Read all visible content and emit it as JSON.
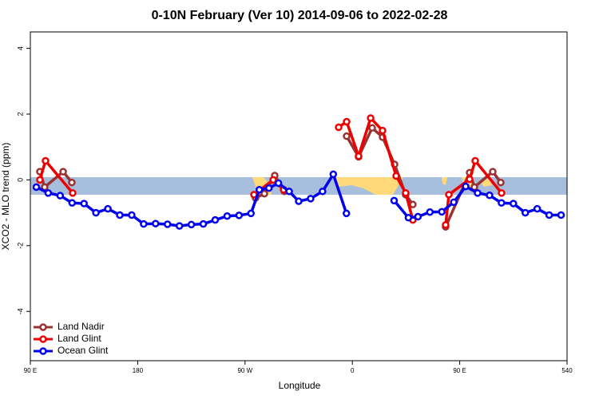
{
  "chart_data": {
    "type": "line",
    "title": "0-10N February (Ver 10)   2014-09-06 to 2022-02-28",
    "xlabel": "Longitude",
    "ylabel": "XCO2 - MLO trend (ppm)",
    "xlim": [
      90,
      540
    ],
    "ylim": [
      -5.5,
      4.5
    ],
    "xticks": [
      {
        "value": 90,
        "label": "90 E"
      },
      180,
      {
        "value": 270,
        "label": "90 W"
      },
      {
        "value": 360,
        "label": "0"
      },
      {
        "value": 450,
        "label": "90 E"
      },
      540
    ],
    "yticks": [
      -4,
      -2,
      0,
      2,
      4
    ],
    "legend": "bottom-left",
    "series": [
      {
        "name": "Land Nadir",
        "color": "#993333",
        "x": [
          98,
          102,
          117.5,
          124.8,
          null,
          278.8,
          286.2,
          294.9,
          303,
          null,
          355.2,
          365.2,
          376.6,
          385.3,
          395.4,
          404.7,
          410.7,
          null,
          438.2,
          458.3,
          462.3,
          477.7,
          484.4
        ],
        "values": [
          0.25,
          -0.22,
          0.25,
          -0.08,
          null,
          -0.55,
          -0.42,
          0.13,
          -0.35,
          null,
          1.33,
          0.7,
          1.58,
          1.3,
          0.47,
          -0.45,
          -0.75,
          null,
          -1.43,
          0.22,
          -0.22,
          0.25,
          -0.08
        ]
      },
      {
        "name": "Land Glint",
        "color": "#ee0000",
        "x": [
          98,
          102.7,
          125.5,
          null,
          277.5,
          293.6,
          302.3,
          null,
          348.5,
          355.2,
          365.2,
          375.3,
          385.3,
          396.7,
          404.7,
          410.7,
          null,
          438.2,
          440.9,
          458.3,
          463,
          485.1
        ],
        "values": [
          0.0,
          0.58,
          -0.4,
          null,
          -0.45,
          0.0,
          -0.3,
          null,
          1.6,
          1.77,
          0.72,
          1.88,
          1.5,
          0.12,
          -0.4,
          -1.22,
          null,
          -1.37,
          -0.45,
          0.02,
          0.58,
          -0.4
        ]
      },
      {
        "name": "Ocean Glint",
        "color": "#0000ee",
        "x": [
          95,
          105,
          115,
          125,
          135,
          145,
          155,
          165,
          175,
          185,
          195,
          205,
          215,
          225,
          235,
          245,
          255,
          265,
          275,
          282,
          290,
          298,
          307,
          315,
          325,
          335,
          344,
          355,
          null,
          395,
          407,
          415,
          425,
          435,
          445,
          455,
          465,
          475,
          485,
          495,
          505,
          515,
          525,
          535
        ],
        "values": [
          -0.22,
          -0.4,
          -0.48,
          -0.7,
          -0.72,
          -1.0,
          -0.88,
          -1.07,
          -1.07,
          -1.34,
          -1.33,
          -1.35,
          -1.4,
          -1.36,
          -1.34,
          -1.22,
          -1.1,
          -1.08,
          -1.02,
          -0.3,
          -0.25,
          -0.1,
          -0.35,
          -0.65,
          -0.57,
          -0.35,
          0.17,
          -1.02,
          null,
          -0.63,
          -1.15,
          -1.12,
          -0.98,
          -0.97,
          -0.68,
          -0.2,
          -0.4,
          -0.47,
          -0.7,
          -0.72,
          -1.0,
          -0.88,
          -1.07,
          -1.07
        ]
      }
    ]
  }
}
